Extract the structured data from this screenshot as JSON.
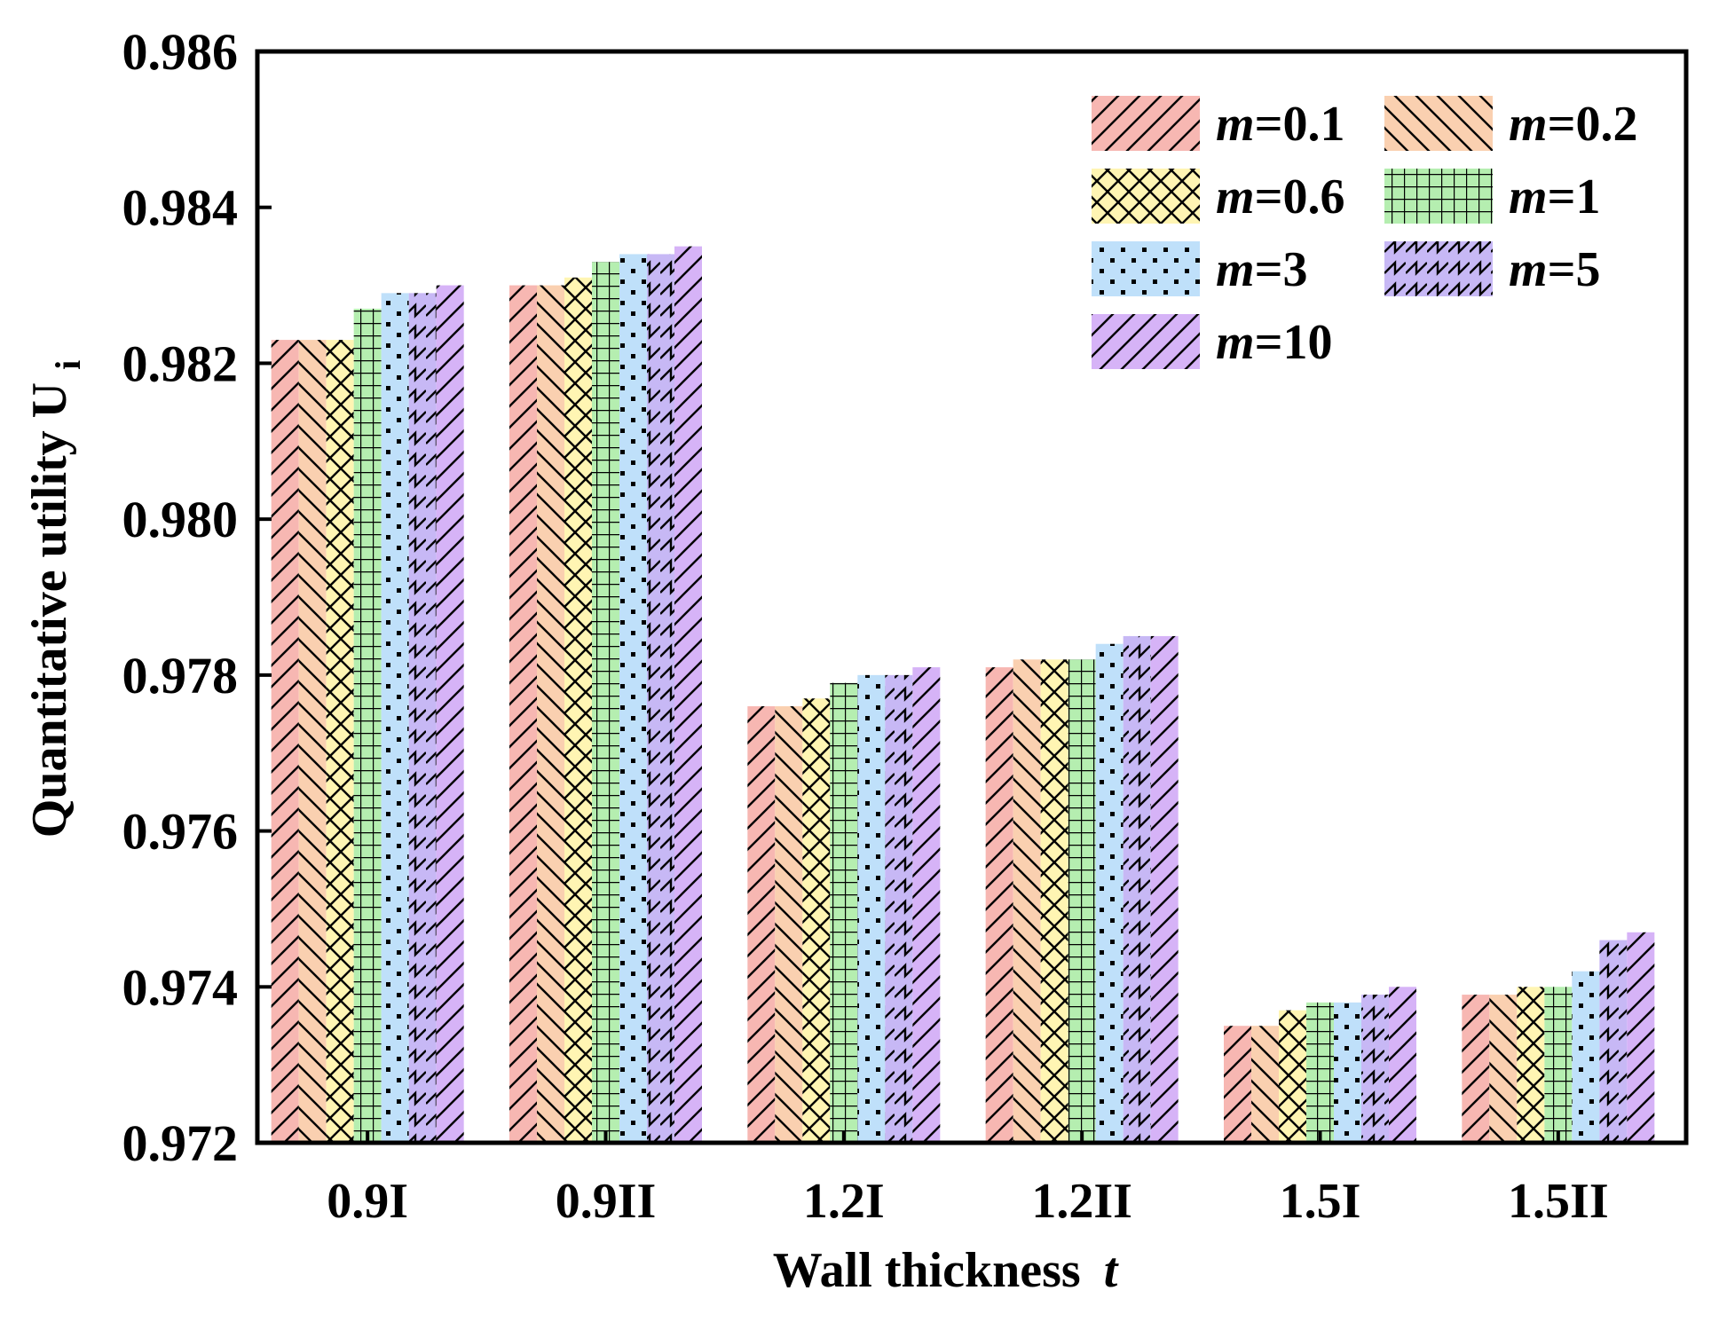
{
  "chart_data": {
    "type": "bar",
    "xlabel": "Wall thickness",
    "xlabel_var": "t",
    "ylabel": "Quantitative utility U",
    "ylabel_sub": "i",
    "ylim": [
      0.972,
      0.986
    ],
    "yticks": [
      "0.972",
      "0.974",
      "0.976",
      "0.978",
      "0.980",
      "0.982",
      "0.984",
      "0.986"
    ],
    "ytick_values": [
      0.972,
      0.974,
      0.976,
      0.978,
      0.98,
      0.982,
      0.984,
      0.986
    ],
    "categories": [
      "0.9I",
      "0.9II",
      "1.2I",
      "1.2II",
      "1.5I",
      "1.5II"
    ],
    "grid": false,
    "legend_position": "top-right",
    "series": [
      {
        "name": "m=0.1",
        "var": "m",
        "rest": "=0.1",
        "color": "#F7B7B2",
        "pattern": "fwd-diag",
        "values": [
          0.9823,
          0.983,
          0.9776,
          0.9781,
          0.9735,
          0.9739
        ]
      },
      {
        "name": "m=0.2",
        "var": "m",
        "rest": "=0.2",
        "color": "#FAD0B0",
        "pattern": "back-diag",
        "values": [
          0.9823,
          0.983,
          0.9776,
          0.9782,
          0.9735,
          0.9739
        ]
      },
      {
        "name": "m=0.6",
        "var": "m",
        "rest": "=0.6",
        "color": "#FFF5B3",
        "pattern": "cross-diag",
        "values": [
          0.9823,
          0.9831,
          0.9777,
          0.9782,
          0.9737,
          0.974
        ]
      },
      {
        "name": "m=1",
        "var": "m",
        "rest": "=1",
        "color": "#B5EEB0",
        "pattern": "grid",
        "values": [
          0.9827,
          0.9833,
          0.9779,
          0.9782,
          0.9738,
          0.974
        ]
      },
      {
        "name": "m=3",
        "var": "m",
        "rest": "=3",
        "color": "#BFE0FA",
        "pattern": "dots",
        "values": [
          0.9829,
          0.9834,
          0.978,
          0.9784,
          0.9738,
          0.9742
        ]
      },
      {
        "name": "m=5",
        "var": "m",
        "rest": "=5",
        "color": "#C7B8F5",
        "pattern": "zigzag",
        "values": [
          0.9829,
          0.9834,
          0.978,
          0.9785,
          0.9739,
          0.9746
        ]
      },
      {
        "name": "m=10",
        "var": "m",
        "rest": "=10",
        "color": "#D6B3F7",
        "pattern": "fwd-diag",
        "values": [
          0.983,
          0.9835,
          0.9781,
          0.9785,
          0.974,
          0.9747
        ]
      }
    ]
  }
}
